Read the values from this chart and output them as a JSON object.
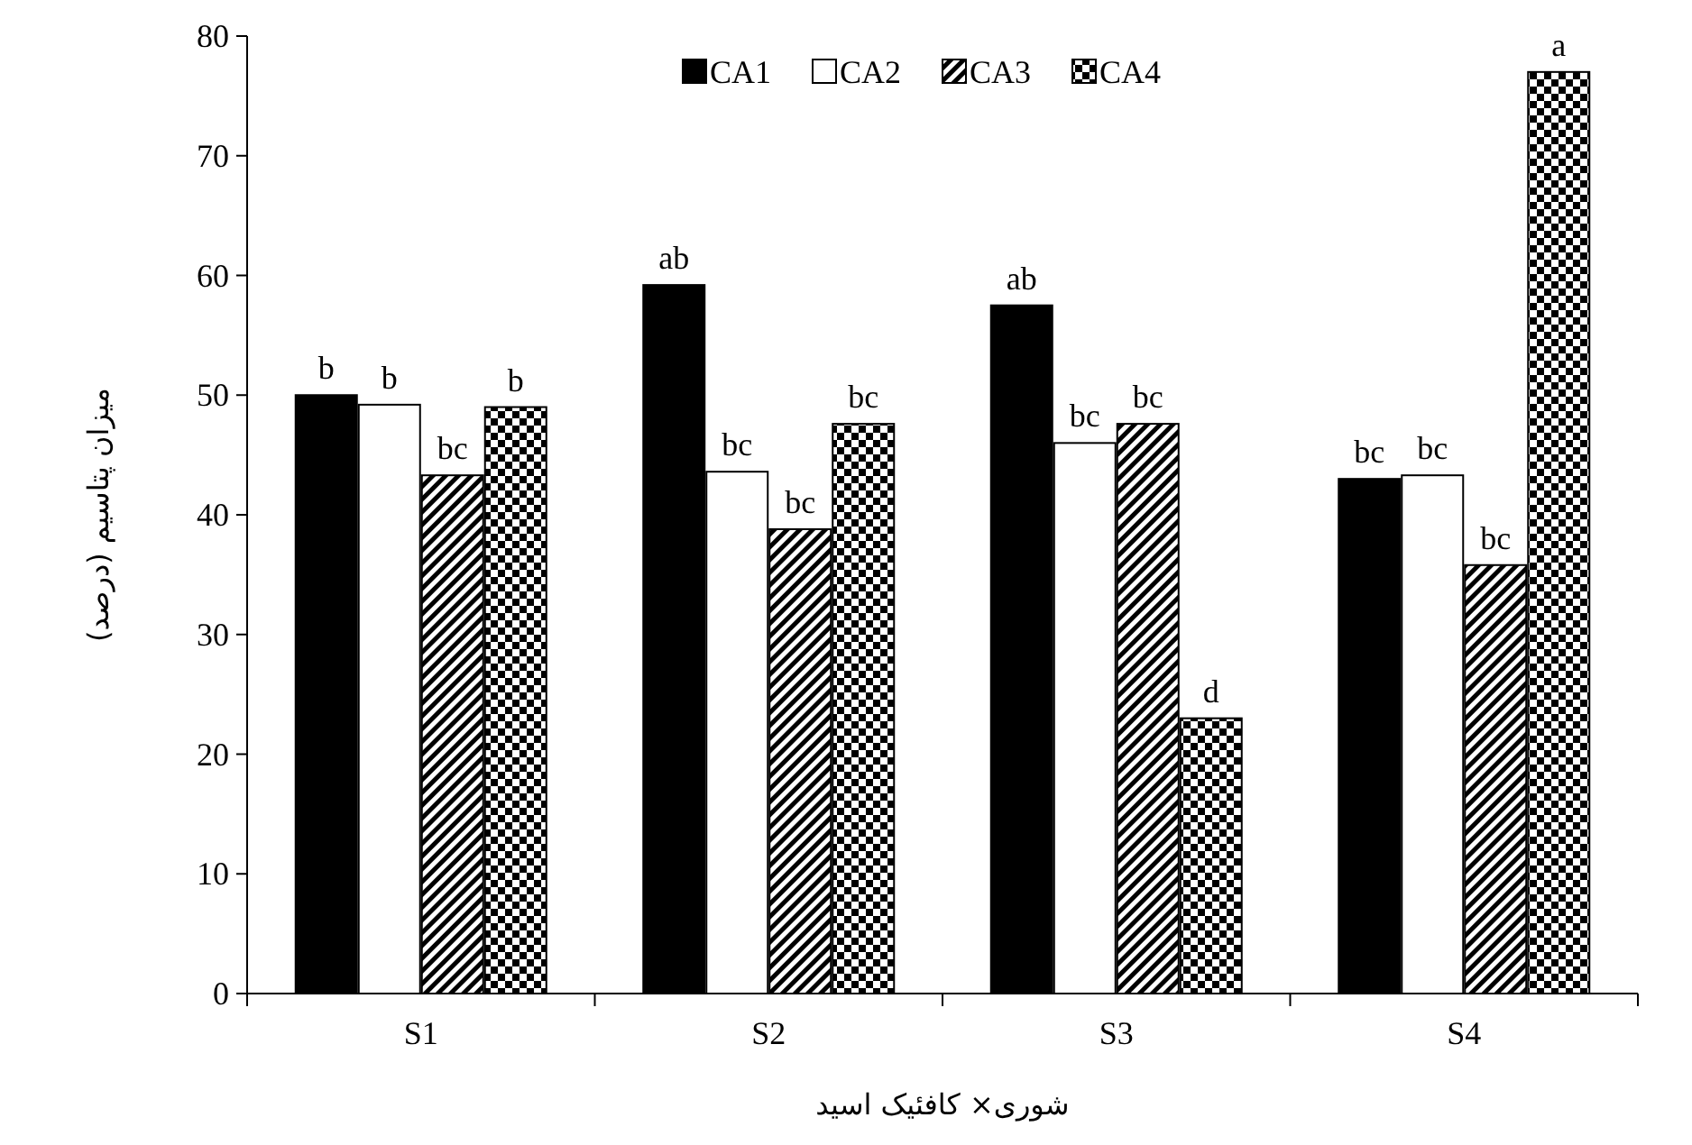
{
  "chart_data": {
    "type": "bar",
    "xlabel": "شوری× کافئیک اسید",
    "ylabel": "میزان پتاسیم (درصد)",
    "categories": [
      "S1",
      "S2",
      "S3",
      "S4"
    ],
    "series": [
      {
        "name": "CA1",
        "color": "#000000",
        "values": [
          50,
          59.2,
          57.5,
          43
        ],
        "value_labels": [
          "b",
          "ab",
          "ab",
          "bc"
        ]
      },
      {
        "name": "CA2",
        "color": "#ffffff",
        "values": [
          49.2,
          43.6,
          46,
          43.3
        ],
        "value_labels": [
          "b",
          "bc",
          "bc",
          "bc"
        ]
      },
      {
        "name": "CA3",
        "color": "#000000",
        "values": [
          43.3,
          38.8,
          47.6,
          35.8
        ],
        "value_labels": [
          "bc",
          "bc",
          "bc",
          "bc"
        ]
      },
      {
        "name": "CA4",
        "color": "#000000",
        "values": [
          49,
          47.6,
          23,
          77
        ],
        "value_labels": [
          "b",
          "bc",
          "d",
          "a"
        ]
      }
    ],
    "ylim": [
      0,
      80
    ],
    "yticks": [
      0,
      10,
      20,
      30,
      40,
      50,
      60,
      70,
      80
    ],
    "grid": false,
    "legend": "top"
  }
}
